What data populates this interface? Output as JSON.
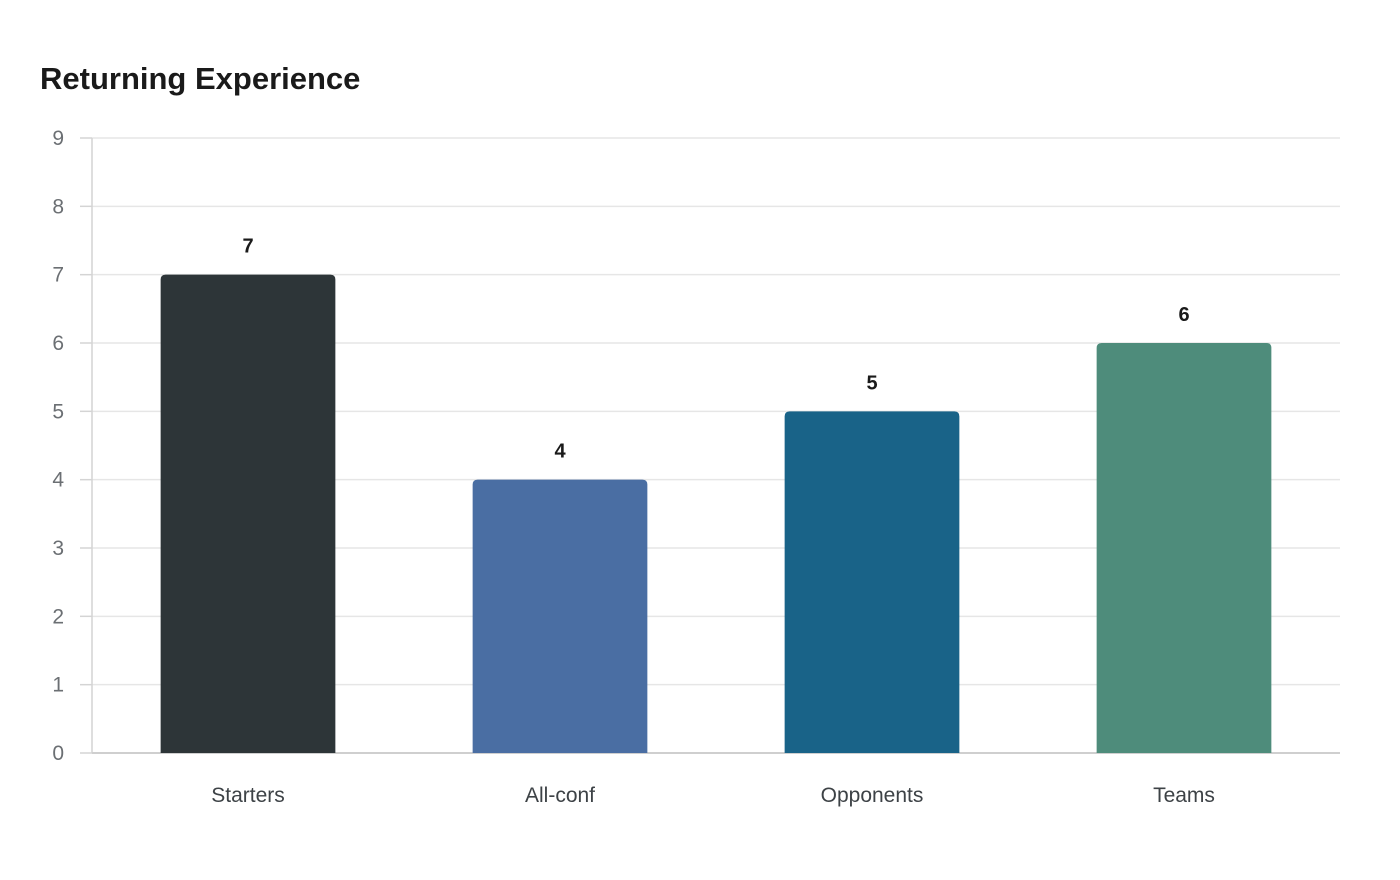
{
  "chart_data": {
    "type": "bar",
    "title": "Returning Experience",
    "categories": [
      "Starters",
      "All-conf",
      "Opponents",
      "Teams"
    ],
    "values": [
      7,
      4,
      5,
      6
    ],
    "colors": [
      "#2d3538",
      "#4a6ea3",
      "#196388",
      "#4e8c7b"
    ],
    "ylim": [
      0,
      9
    ],
    "yticks": [
      0,
      1,
      2,
      3,
      4,
      5,
      6,
      7,
      8,
      9
    ],
    "xlabel": "",
    "ylabel": "",
    "grid": true,
    "legend": "none",
    "data_labels": true
  }
}
